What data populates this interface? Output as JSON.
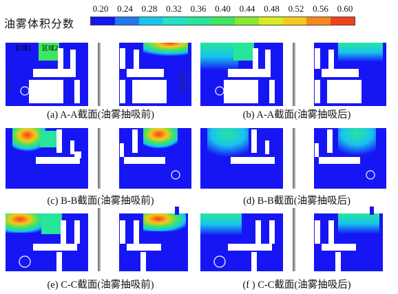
{
  "legend": {
    "title": "油雾体积分数",
    "ticks": [
      "0.20",
      "0.24",
      "0.28",
      "0.32",
      "0.36",
      "0.40",
      "0.44",
      "0.48",
      "0.52",
      "0.56",
      "0.60"
    ],
    "colors": [
      "#1616f5",
      "#1f79f0",
      "#18c4ee",
      "#1fe3c8",
      "#27e59a",
      "#3fe65d",
      "#86ea2e",
      "#d6ee1e",
      "#f7c81a",
      "#f7881b",
      "#f2401c"
    ]
  },
  "region_labels": [
    "区域1",
    "区域2"
  ],
  "panels": [
    {
      "caption": "(a) A-A截面(油雾抽吸前)"
    },
    {
      "caption": "(b) A-A截面(油雾抽吸后)"
    },
    {
      "caption": "(c) B-B截面(油雾抽吸前)"
    },
    {
      "caption": "(d) B-B截面(油雾抽吸后)"
    },
    {
      "caption": "(e) C-C截面(油雾抽吸前)"
    },
    {
      "caption": "(f ) C-C截面(油雾抽吸后)"
    }
  ]
}
